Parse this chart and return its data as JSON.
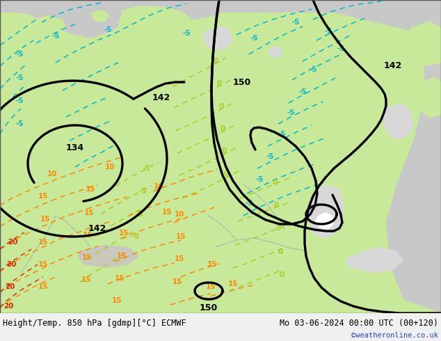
{
  "title_left": "Height/Temp. 850 hPa [gdmp][°C] ECMWF",
  "title_right": "Mo 03-06-2024 00:00 UTC (00+120)",
  "credit": "©weatheronline.co.uk",
  "map_green": "#c8e89a",
  "map_green_dark": "#a8d870",
  "map_gray": "#c8c8c8",
  "map_gray2": "#d8d8d8",
  "black": "#000000",
  "cyan": "#00b8cc",
  "lime": "#88cc00",
  "orange": "#ff8800",
  "red": "#dd2200",
  "bg": "#f0f0f0",
  "title_fontsize": 8.5,
  "credit_fontsize": 7.5
}
